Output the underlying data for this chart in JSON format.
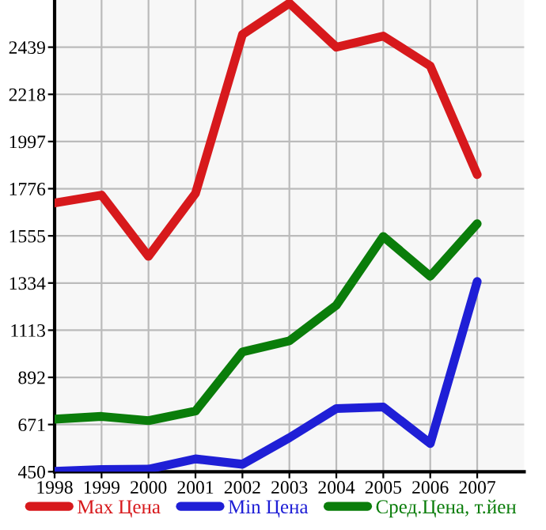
{
  "chart_data": {
    "type": "line",
    "x": [
      1998,
      1999,
      2000,
      2001,
      2002,
      2003,
      2004,
      2005,
      2006,
      2007
    ],
    "series": [
      {
        "name": "Max Цена",
        "color": "#d7191c",
        "values": [
          1709,
          1746,
          1459,
          1754,
          2498,
          2645,
          2439,
          2491,
          2351,
          1842
        ]
      },
      {
        "name": "Min Цена",
        "color": "#1f1fd6",
        "values": [
          452,
          460,
          462,
          510,
          485,
          609,
          746,
          753,
          582,
          1341
        ]
      },
      {
        "name": "Сред.Цена, т.йен",
        "color": "#0a7d0a",
        "values": [
          696,
          709,
          689,
          734,
          1011,
          1063,
          1230,
          1552,
          1366,
          1612
        ]
      }
    ],
    "xlim": [
      1998,
      2008
    ],
    "xticks": [
      1998,
      1999,
      2000,
      2001,
      2002,
      2003,
      2004,
      2005,
      2006,
      2007
    ],
    "ylim": [
      450,
      2660
    ],
    "yticks": [
      450,
      671,
      892,
      1113,
      1334,
      1555,
      1776,
      1997,
      2218,
      2439
    ],
    "grid": true,
    "legend": "bottom",
    "marker": "none",
    "line_style": "solid"
  }
}
